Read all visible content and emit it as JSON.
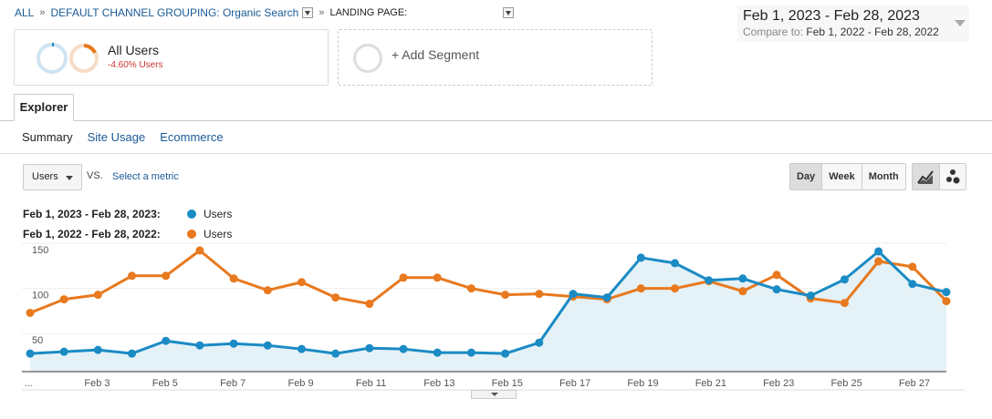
{
  "breadcrumb": {
    "all": "ALL",
    "grouping": "DEFAULT CHANNEL GROUPING: Organic Search",
    "landing": "LANDING PAGE:"
  },
  "date_range": {
    "main": "Feb 1, 2023 - Feb 28, 2023",
    "compare_label": "Compare to:",
    "compare_range": "Feb 1, 2022 - Feb 28, 2022"
  },
  "segments": {
    "active_title": "All Users",
    "active_sub": "-4.60% Users",
    "add_label": "+ Add Segment"
  },
  "tabs": {
    "explorer": "Explorer"
  },
  "subnav": {
    "summary": "Summary",
    "site_usage": "Site Usage",
    "ecommerce": "Ecommerce"
  },
  "controls": {
    "metric": "Users",
    "vs": "VS.",
    "select_metric": "Select a metric",
    "periods": [
      "Day",
      "Week",
      "Month"
    ],
    "chart_type_icons": [
      "line-chart-icon",
      "motion-chart-icon"
    ]
  },
  "colors": {
    "current": "#1a8bc4",
    "previous": "#e8791e",
    "area": "#e4f1f7"
  },
  "chart_data": {
    "type": "line",
    "x": [
      "Feb 1",
      "Feb 2",
      "Feb 3",
      "Feb 4",
      "Feb 5",
      "Feb 6",
      "Feb 7",
      "Feb 8",
      "Feb 9",
      "Feb 10",
      "Feb 11",
      "Feb 12",
      "Feb 13",
      "Feb 14",
      "Feb 15",
      "Feb 16",
      "Feb 17",
      "Feb 18",
      "Feb 19",
      "Feb 20",
      "Feb 21",
      "Feb 22",
      "Feb 23",
      "Feb 24",
      "Feb 25",
      "Feb 26",
      "Feb 27",
      "Feb 28"
    ],
    "xtick_labels": [
      "...",
      "Feb 3",
      "Feb 5",
      "Feb 7",
      "Feb 9",
      "Feb 11",
      "Feb 13",
      "Feb 15",
      "Feb 17",
      "Feb 19",
      "Feb 21",
      "Feb 23",
      "Feb 25",
      "Feb 27"
    ],
    "yticks": [
      50,
      100,
      150
    ],
    "ylim": [
      20,
      155
    ],
    "series": [
      {
        "name": "Feb 1, 2023 - Feb 28, 2023:",
        "label": "Users",
        "values": [
          40,
          42,
          44,
          40,
          54,
          49,
          51,
          49,
          45,
          40,
          46,
          45,
          41,
          41,
          40,
          52,
          106,
          102,
          146,
          140,
          121,
          123,
          111,
          104,
          122,
          153,
          117,
          108
        ]
      },
      {
        "name": "Feb 1, 2022 - Feb 28, 2022:",
        "label": "Users",
        "values": [
          85,
          100,
          105,
          126,
          126,
          154,
          123,
          110,
          119,
          102,
          95,
          124,
          124,
          112,
          105,
          106,
          103,
          100,
          112,
          112,
          120,
          109,
          127,
          101,
          96,
          142,
          136,
          98
        ]
      }
    ]
  }
}
